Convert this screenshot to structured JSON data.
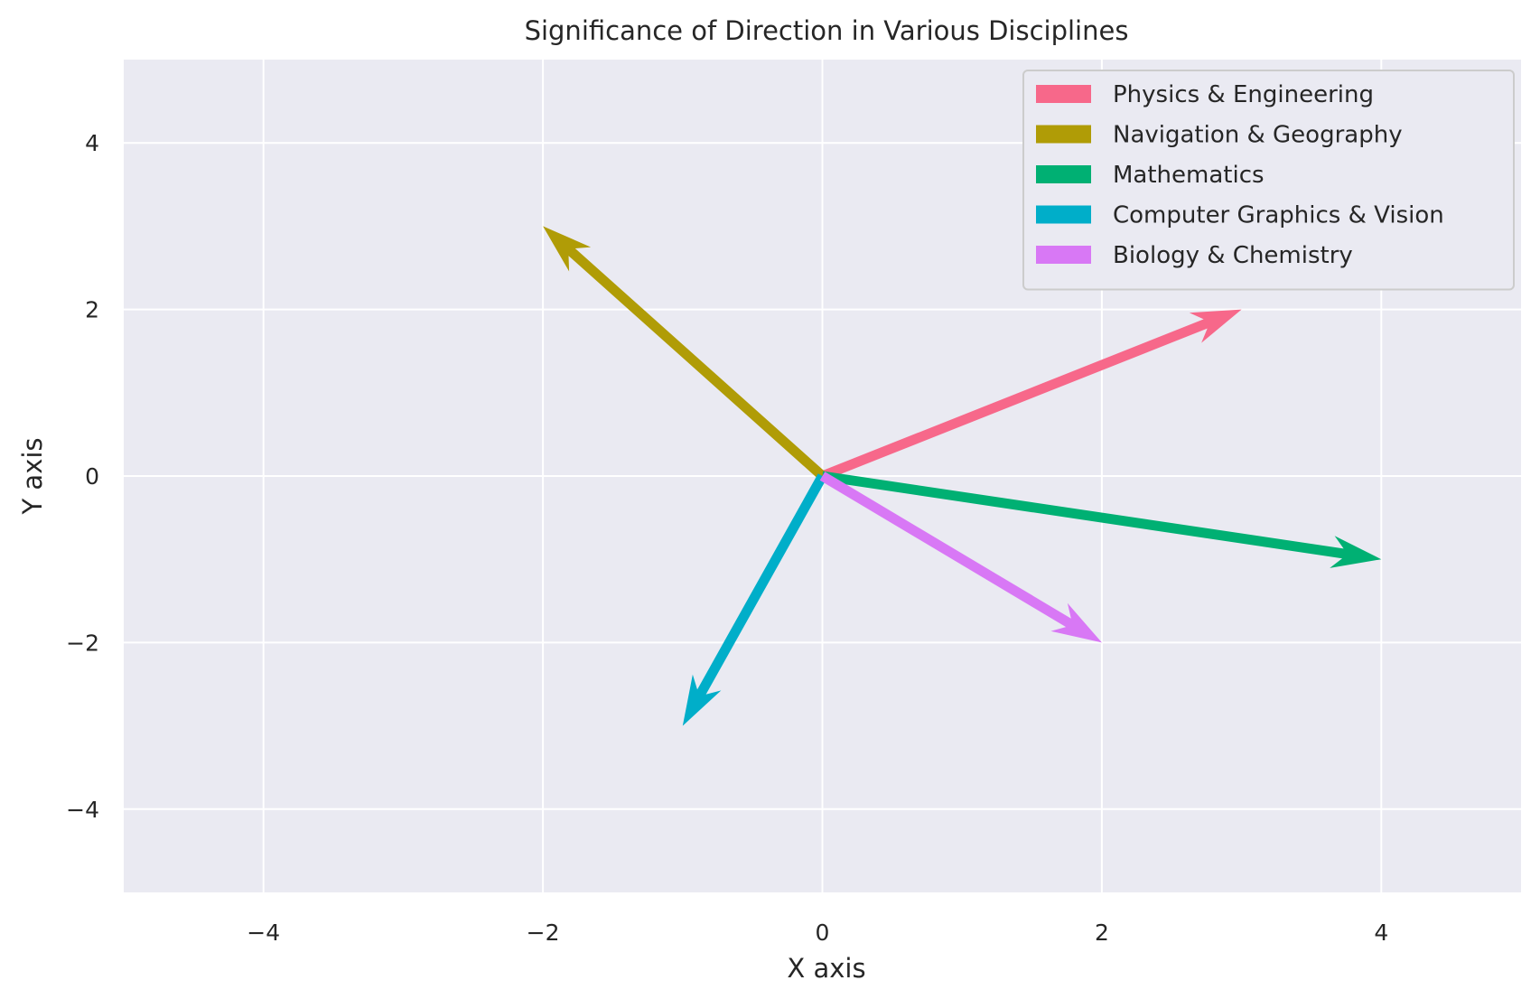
{
  "chart_data": {
    "type": "quiver",
    "title": "Significance of Direction in Various Disciplines",
    "xlabel": "X axis",
    "ylabel": "Y axis",
    "xlim": [
      -5,
      5
    ],
    "ylim": [
      -5,
      5
    ],
    "xticks": [
      -4,
      -2,
      0,
      2,
      4
    ],
    "yticks": [
      -4,
      -2,
      0,
      2,
      4
    ],
    "grid": true,
    "legend_position": "top-right",
    "colors": {
      "plot_background": "#eaeaf2",
      "grid": "#ffffff",
      "text": "#262626"
    },
    "series": [
      {
        "name": "Physics & Engineering",
        "origin": [
          0,
          0
        ],
        "vector": [
          3,
          2
        ],
        "color": "#f7688a"
      },
      {
        "name": "Navigation & Geography",
        "origin": [
          0,
          0
        ],
        "vector": [
          -2,
          3
        ],
        "color": "#b09c06"
      },
      {
        "name": "Mathematics",
        "origin": [
          0,
          0
        ],
        "vector": [
          4,
          -1
        ],
        "color": "#00b073"
      },
      {
        "name": "Computer Graphics & Vision",
        "origin": [
          0,
          0
        ],
        "vector": [
          -1,
          -3
        ],
        "color": "#00aec9"
      },
      {
        "name": "Biology & Chemistry",
        "origin": [
          0,
          0
        ],
        "vector": [
          2,
          -2
        ],
        "color": "#d878f5"
      }
    ]
  }
}
